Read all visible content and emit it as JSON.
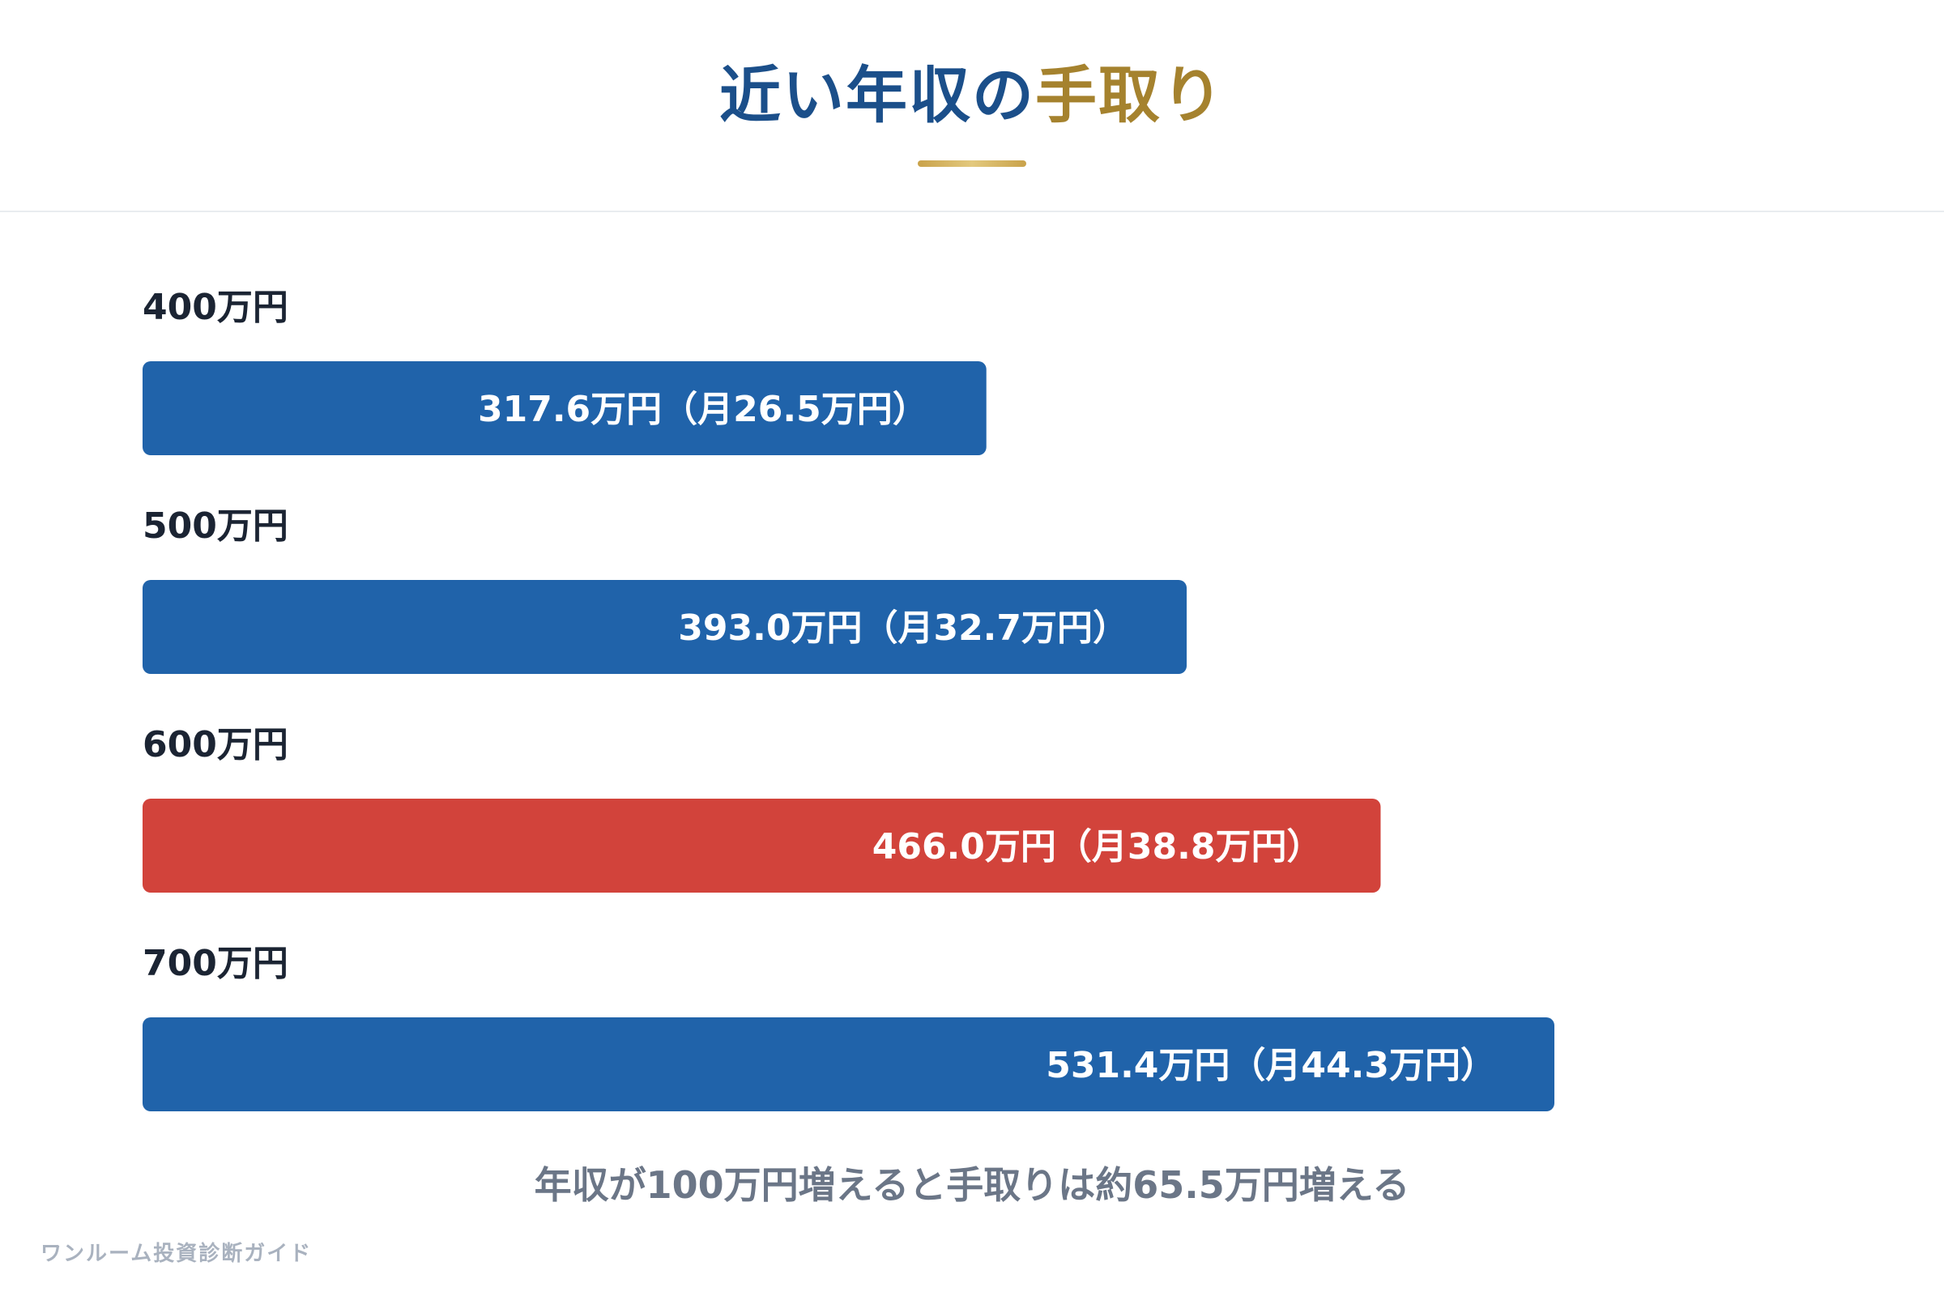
{
  "title_main": "近い年収の",
  "title_accent": "手取り",
  "colors": {
    "primary": "#2063aa",
    "highlight": "#d2433b",
    "title_main": "#1b4f8a",
    "title_accent": "#a5822e"
  },
  "chart_data": {
    "type": "bar",
    "orientation": "horizontal",
    "unit": "万円",
    "categories": [
      "400万円",
      "500万円",
      "600万円",
      "700万円"
    ],
    "values": [
      317.6,
      393.0,
      466.0,
      531.4
    ],
    "monthly_values": [
      26.5,
      32.7,
      38.8,
      44.3
    ],
    "bar_labels": [
      "317.6万円（月26.5万円）",
      "393.0万円（月32.7万円）",
      "466.0万円（月38.8万円）",
      "531.4万円（月44.3万円）"
    ],
    "highlight_index": 2,
    "xlim": [
      0,
      760
    ],
    "grid": false,
    "legend": "none"
  },
  "summary": "年収が100万円増えると手取りは約65.5万円増える",
  "footer": "ワンルーム投資診断ガイド"
}
